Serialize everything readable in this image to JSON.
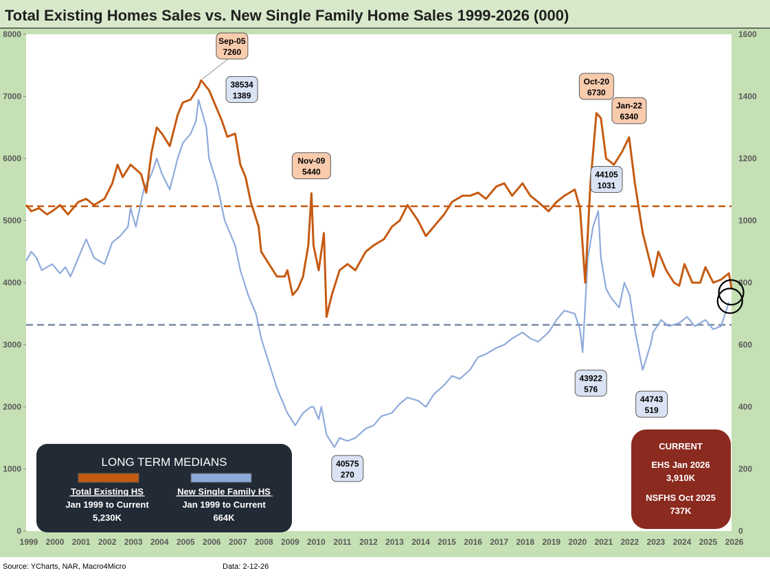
{
  "chart_data": {
    "type": "line",
    "title": "Total Existing Homes Sales vs. New Single Family Home Sales 1999-2026 (000)",
    "x_ticks": [
      "1999",
      "2000",
      "2001",
      "2002",
      "2003",
      "2004",
      "2005",
      "2006",
      "2007",
      "2008",
      "2009",
      "2010",
      "2011",
      "2012",
      "2013",
      "2014",
      "2015",
      "2016",
      "2017",
      "2018",
      "2019",
      "2020",
      "2021",
      "2022",
      "2023",
      "2024",
      "2025",
      "2026"
    ],
    "y_left": {
      "min": 0,
      "max": 8000,
      "ticks": [
        "0",
        "1000",
        "2000",
        "3000",
        "4000",
        "5000",
        "6000",
        "7000",
        "8000"
      ]
    },
    "y_right": {
      "min": 0,
      "max": 1600,
      "ticks": [
        "0",
        "200",
        "400",
        "600",
        "800",
        "1000",
        "1200",
        "1400",
        "1600"
      ]
    },
    "series": [
      {
        "name": "Total Existing HS",
        "axis": "left",
        "color": "#c55a11",
        "median": 5230,
        "points": [
          [
            1999.0,
            5250
          ],
          [
            1999.2,
            5150
          ],
          [
            1999.5,
            5200
          ],
          [
            1999.8,
            5100
          ],
          [
            2000.0,
            5150
          ],
          [
            2000.3,
            5250
          ],
          [
            2000.6,
            5100
          ],
          [
            2001.0,
            5300
          ],
          [
            2001.3,
            5350
          ],
          [
            2001.6,
            5250
          ],
          [
            2002.0,
            5350
          ],
          [
            2002.3,
            5600
          ],
          [
            2002.5,
            5900
          ],
          [
            2002.7,
            5700
          ],
          [
            2003.0,
            5900
          ],
          [
            2003.4,
            5750
          ],
          [
            2003.6,
            5450
          ],
          [
            2003.8,
            6100
          ],
          [
            2004.0,
            6500
          ],
          [
            2004.2,
            6400
          ],
          [
            2004.5,
            6200
          ],
          [
            2004.8,
            6700
          ],
          [
            2005.0,
            6900
          ],
          [
            2005.3,
            6950
          ],
          [
            2005.6,
            7150
          ],
          [
            2005.7,
            7260
          ],
          [
            2006.0,
            7100
          ],
          [
            2006.2,
            6900
          ],
          [
            2006.5,
            6600
          ],
          [
            2006.7,
            6350
          ],
          [
            2007.0,
            6400
          ],
          [
            2007.2,
            5900
          ],
          [
            2007.4,
            5700
          ],
          [
            2007.6,
            5300
          ],
          [
            2007.9,
            4900
          ],
          [
            2008.0,
            4500
          ],
          [
            2008.3,
            4300
          ],
          [
            2008.6,
            4100
          ],
          [
            2008.9,
            4100
          ],
          [
            2009.0,
            4200
          ],
          [
            2009.2,
            3800
          ],
          [
            2009.4,
            3900
          ],
          [
            2009.6,
            4100
          ],
          [
            2009.8,
            4600
          ],
          [
            2009.92,
            5440
          ],
          [
            2010.0,
            4600
          ],
          [
            2010.2,
            4200
          ],
          [
            2010.4,
            4800
          ],
          [
            2010.5,
            3450
          ],
          [
            2010.7,
            3800
          ],
          [
            2011.0,
            4200
          ],
          [
            2011.3,
            4300
          ],
          [
            2011.6,
            4200
          ],
          [
            2012.0,
            4500
          ],
          [
            2012.3,
            4600
          ],
          [
            2012.7,
            4700
          ],
          [
            2013.0,
            4900
          ],
          [
            2013.3,
            5000
          ],
          [
            2013.6,
            5250
          ],
          [
            2014.0,
            5000
          ],
          [
            2014.3,
            4750
          ],
          [
            2014.6,
            4900
          ],
          [
            2015.0,
            5100
          ],
          [
            2015.3,
            5300
          ],
          [
            2015.7,
            5400
          ],
          [
            2016.0,
            5400
          ],
          [
            2016.3,
            5450
          ],
          [
            2016.6,
            5350
          ],
          [
            2017.0,
            5550
          ],
          [
            2017.3,
            5600
          ],
          [
            2017.6,
            5400
          ],
          [
            2018.0,
            5600
          ],
          [
            2018.3,
            5400
          ],
          [
            2018.6,
            5300
          ],
          [
            2019.0,
            5150
          ],
          [
            2019.3,
            5300
          ],
          [
            2019.6,
            5400
          ],
          [
            2020.0,
            5500
          ],
          [
            2020.2,
            5200
          ],
          [
            2020.4,
            4000
          ],
          [
            2020.6,
            5600
          ],
          [
            2020.83,
            6730
          ],
          [
            2021.0,
            6650
          ],
          [
            2021.2,
            6000
          ],
          [
            2021.5,
            5900
          ],
          [
            2021.8,
            6100
          ],
          [
            2022.08,
            6340
          ],
          [
            2022.3,
            5600
          ],
          [
            2022.6,
            4800
          ],
          [
            2022.9,
            4300
          ],
          [
            2023.0,
            4100
          ],
          [
            2023.2,
            4500
          ],
          [
            2023.5,
            4200
          ],
          [
            2023.8,
            4000
          ],
          [
            2024.0,
            3950
          ],
          [
            2024.2,
            4300
          ],
          [
            2024.5,
            4000
          ],
          [
            2024.8,
            4000
          ],
          [
            2025.0,
            4250
          ],
          [
            2025.3,
            4000
          ],
          [
            2025.6,
            4050
          ],
          [
            2025.9,
            4150
          ],
          [
            2026.0,
            3910
          ]
        ]
      },
      {
        "name": "New Single Family HS",
        "axis": "right",
        "color": "#8eaadb",
        "median": 664,
        "points": [
          [
            1999.0,
            870
          ],
          [
            1999.2,
            900
          ],
          [
            1999.4,
            880
          ],
          [
            1999.6,
            840
          ],
          [
            2000.0,
            860
          ],
          [
            2000.3,
            830
          ],
          [
            2000.5,
            850
          ],
          [
            2000.7,
            820
          ],
          [
            2001.0,
            880
          ],
          [
            2001.3,
            940
          ],
          [
            2001.6,
            880
          ],
          [
            2002.0,
            860
          ],
          [
            2002.3,
            930
          ],
          [
            2002.6,
            950
          ],
          [
            2002.9,
            980
          ],
          [
            2003.0,
            1040
          ],
          [
            2003.2,
            980
          ],
          [
            2003.5,
            1100
          ],
          [
            2003.8,
            1150
          ],
          [
            2004.0,
            1200
          ],
          [
            2004.2,
            1150
          ],
          [
            2004.5,
            1100
          ],
          [
            2004.8,
            1200
          ],
          [
            2005.0,
            1250
          ],
          [
            2005.3,
            1280
          ],
          [
            2005.5,
            1320
          ],
          [
            2005.6,
            1389
          ],
          [
            2005.9,
            1300
          ],
          [
            2006.0,
            1200
          ],
          [
            2006.3,
            1120
          ],
          [
            2006.6,
            1000
          ],
          [
            2006.9,
            940
          ],
          [
            2007.0,
            920
          ],
          [
            2007.2,
            840
          ],
          [
            2007.5,
            760
          ],
          [
            2007.8,
            700
          ],
          [
            2008.0,
            620
          ],
          [
            2008.3,
            540
          ],
          [
            2008.6,
            460
          ],
          [
            2008.9,
            400
          ],
          [
            2009.0,
            380
          ],
          [
            2009.3,
            340
          ],
          [
            2009.6,
            380
          ],
          [
            2009.9,
            400
          ],
          [
            2010.0,
            400
          ],
          [
            2010.2,
            360
          ],
          [
            2010.3,
            400
          ],
          [
            2010.5,
            310
          ],
          [
            2010.8,
            270
          ],
          [
            2011.0,
            300
          ],
          [
            2011.3,
            290
          ],
          [
            2011.6,
            300
          ],
          [
            2012.0,
            330
          ],
          [
            2012.3,
            340
          ],
          [
            2012.6,
            370
          ],
          [
            2013.0,
            380
          ],
          [
            2013.3,
            410
          ],
          [
            2013.6,
            430
          ],
          [
            2014.0,
            420
          ],
          [
            2014.3,
            400
          ],
          [
            2014.6,
            440
          ],
          [
            2015.0,
            470
          ],
          [
            2015.3,
            500
          ],
          [
            2015.6,
            490
          ],
          [
            2016.0,
            520
          ],
          [
            2016.3,
            560
          ],
          [
            2016.6,
            570
          ],
          [
            2017.0,
            590
          ],
          [
            2017.3,
            600
          ],
          [
            2017.6,
            620
          ],
          [
            2018.0,
            640
          ],
          [
            2018.3,
            620
          ],
          [
            2018.6,
            610
          ],
          [
            2019.0,
            640
          ],
          [
            2019.3,
            680
          ],
          [
            2019.6,
            710
          ],
          [
            2020.0,
            700
          ],
          [
            2020.2,
            650
          ],
          [
            2020.3,
            576
          ],
          [
            2020.5,
            880
          ],
          [
            2020.7,
            980
          ],
          [
            2020.9,
            1031
          ],
          [
            2021.0,
            880
          ],
          [
            2021.2,
            780
          ],
          [
            2021.4,
            750
          ],
          [
            2021.7,
            720
          ],
          [
            2021.9,
            800
          ],
          [
            2022.1,
            760
          ],
          [
            2022.3,
            650
          ],
          [
            2022.5,
            560
          ],
          [
            2022.6,
            519
          ],
          [
            2022.9,
            600
          ],
          [
            2023.0,
            640
          ],
          [
            2023.3,
            680
          ],
          [
            2023.6,
            660
          ],
          [
            2024.0,
            670
          ],
          [
            2024.3,
            690
          ],
          [
            2024.6,
            660
          ],
          [
            2025.0,
            680
          ],
          [
            2025.3,
            650
          ],
          [
            2025.6,
            660
          ],
          [
            2025.9,
            737
          ]
        ]
      }
    ],
    "callouts": [
      {
        "series": "Total Existing HS",
        "x": 2005.7,
        "y": 7260,
        "line1": "Sep-05",
        "line2": "7260"
      },
      {
        "series": "New Single Family HS",
        "x": 2005.6,
        "y": 1389,
        "line1": "38534",
        "line2": "1389"
      },
      {
        "series": "Total Existing HS",
        "x": 2009.92,
        "y": 5440,
        "line1": "Nov-09",
        "line2": "5440"
      },
      {
        "series": "New Single Family HS",
        "x": 2010.8,
        "y": 270,
        "line1": "40575",
        "line2": "270"
      },
      {
        "series": "Total Existing HS",
        "x": 2020.83,
        "y": 6730,
        "line1": "Oct-20",
        "line2": "6730"
      },
      {
        "series": "Total Existing HS",
        "x": 2022.08,
        "y": 6340,
        "line1": "Jan-22",
        "line2": "6340"
      },
      {
        "series": "New Single Family HS",
        "x": 2020.9,
        "y": 1031,
        "line1": "44105",
        "line2": "1031"
      },
      {
        "series": "New Single Family HS",
        "x": 2020.3,
        "y": 576,
        "line1": "43922",
        "line2": "576"
      },
      {
        "series": "New Single Family HS",
        "x": 2022.6,
        "y": 519,
        "line1": "44743",
        "line2": "519"
      }
    ]
  },
  "medians_box": {
    "title": "LONG TERM MEDIANS",
    "existing_label": "Total Existing HS",
    "existing_period": "Jan 1999 to Current",
    "existing_value": "5,230K",
    "new_label": "New Single Family HS",
    "new_period": "Jan 1999 to Current",
    "new_value": "664K"
  },
  "current_box": {
    "title": "CURRENT",
    "ehs_label": "EHS Jan 2026",
    "ehs_value": "3,910K",
    "nsfhs_label": "NSFHS Oct 2025",
    "nsfhs_value": "737K"
  },
  "footer": {
    "source": "Source: YCharts, NAR, Macro4Micro",
    "date": "Data: 2-12-26"
  },
  "colors": {
    "background": "#c5e0b4",
    "plot": "#ffffff",
    "existing": "#c55a11",
    "new": "#8eaadb",
    "callout_existing_fill": "#f8cbad",
    "callout_new_fill": "#dae3f3",
    "medians_box": "#222a35",
    "current_box": "#8b2a1f"
  }
}
